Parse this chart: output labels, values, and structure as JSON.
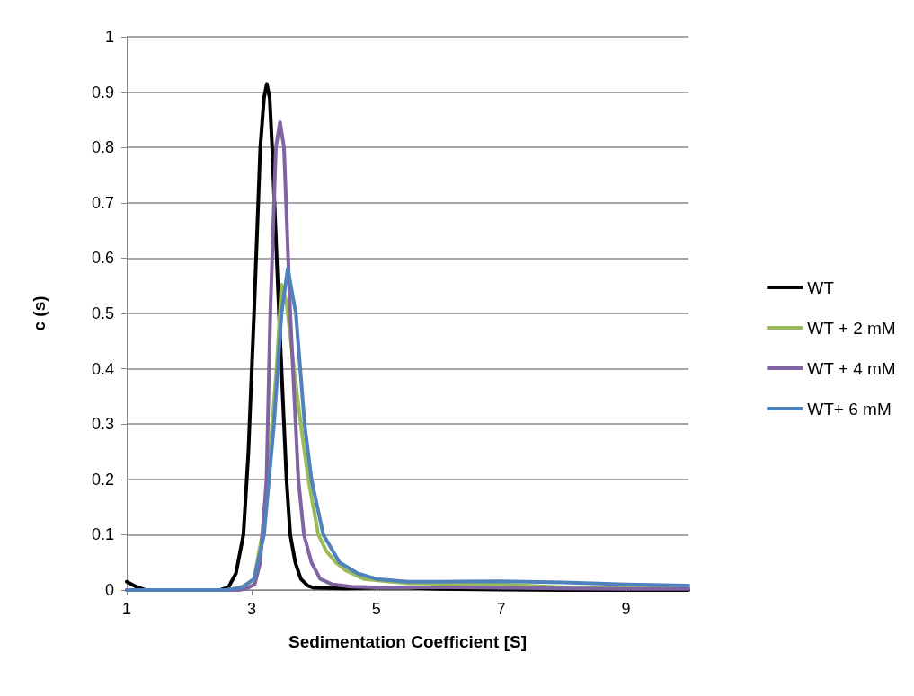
{
  "chart_data": {
    "type": "line",
    "xlabel": "Sedimentation Coefficient [S]",
    "ylabel": "c (s)",
    "xlim": [
      1,
      10
    ],
    "xticks": [
      1,
      3,
      5,
      7,
      9
    ],
    "ylim": [
      0,
      1
    ],
    "yticks": [
      0,
      0.1,
      0.2,
      0.3,
      0.4,
      0.5,
      0.6,
      0.7,
      0.8,
      0.9,
      1
    ],
    "grid": "y",
    "legend": "right",
    "marker": "none",
    "line_style": "solid",
    "series": [
      {
        "name": "WT",
        "color": "#000000",
        "x": [
          1,
          1.15,
          1.3,
          2,
          2.5,
          2.63,
          2.75,
          2.87,
          2.95,
          3.04,
          3.14,
          3.2,
          3.245,
          3.29,
          3.33,
          3.44,
          3.56,
          3.62,
          3.7,
          3.79,
          3.9,
          4,
          4.5,
          5,
          5.5,
          6,
          7,
          8,
          9,
          10
        ],
        "values": [
          0.015,
          0.006,
          0,
          0,
          0,
          0.005,
          0.03,
          0.1,
          0.25,
          0.5,
          0.8,
          0.89,
          0.915,
          0.89,
          0.8,
          0.5,
          0.2,
          0.1,
          0.05,
          0.02,
          0.008,
          0.004,
          0.003,
          0.004,
          0.004,
          0.002,
          0.001,
          0,
          0,
          0
        ]
      },
      {
        "name": "WT + 2 mM",
        "color": "#9bbb59",
        "x": [
          2.6,
          2.75,
          2.9,
          3.04,
          3.17,
          3.26,
          3.4,
          3.48,
          3.56,
          3.68,
          3.8,
          3.91,
          4.07,
          4.2,
          4.35,
          4.5,
          4.8,
          5.5,
          7,
          8,
          9,
          10
        ],
        "values": [
          0,
          0.003,
          0.008,
          0.02,
          0.1,
          0.2,
          0.4,
          0.552,
          0.52,
          0.4,
          0.29,
          0.2,
          0.1,
          0.07,
          0.05,
          0.036,
          0.02,
          0.012,
          0.01,
          0.005,
          0.004,
          0.004
        ]
      },
      {
        "name": "WT + 4 mM",
        "color": "#8064a2",
        "x": [
          1,
          2,
          2.8,
          2.9,
          3.05,
          3.14,
          3.24,
          3.3,
          3.39,
          3.456,
          3.52,
          3.62,
          3.75,
          3.84,
          3.96,
          4.1,
          4.3,
          4.6,
          5,
          6,
          7,
          8,
          9,
          10
        ],
        "values": [
          0,
          0,
          0,
          0.002,
          0.01,
          0.05,
          0.2,
          0.5,
          0.8,
          0.846,
          0.8,
          0.5,
          0.2,
          0.1,
          0.05,
          0.02,
          0.01,
          0.006,
          0.005,
          0.005,
          0.004,
          0.003,
          0.002,
          0.002
        ]
      },
      {
        "name": "WT+ 6 mM",
        "color": "#4f81bd",
        "x": [
          1,
          2,
          2.6,
          2.85,
          3.04,
          3.2,
          3.36,
          3.48,
          3.58,
          3.71,
          3.85,
          3.96,
          4.15,
          4.41,
          4.7,
          5,
          5.5,
          6,
          7,
          8,
          9,
          10
        ],
        "values": [
          0,
          0,
          0,
          0.005,
          0.02,
          0.1,
          0.3,
          0.5,
          0.581,
          0.5,
          0.3,
          0.2,
          0.1,
          0.05,
          0.03,
          0.02,
          0.015,
          0.015,
          0.016,
          0.014,
          0.01,
          0.008
        ]
      }
    ]
  }
}
